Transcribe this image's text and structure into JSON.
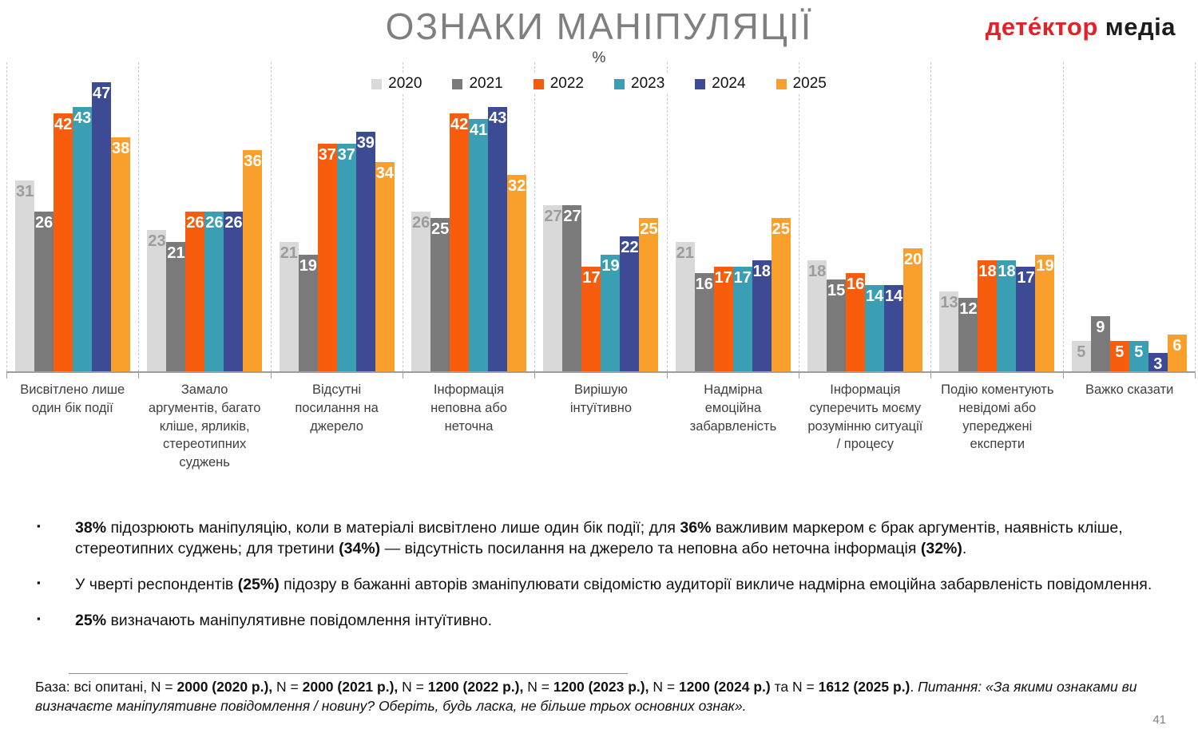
{
  "header": {
    "title": "ОЗНАКИ МАНІПУЛЯЦІЇ",
    "logo": {
      "text_red": "дете́ктор",
      "text_black": "медіа",
      "color_red": "#e32127",
      "color_black": "#1c1c1c"
    }
  },
  "chart_data": {
    "type": "bar",
    "unit": "%",
    "title": "ОЗНАКИ МАНІПУЛЯЦІЇ",
    "legend_position": "top",
    "grid": false,
    "ylim": [
      0,
      50
    ],
    "categories": [
      "Висвітлено лише один бік події",
      "Замало аргументів, багато кліше, ярликів, стереотипних суджень",
      "Відсутні посилання на джерело",
      "Інформація неповна або неточна",
      "Вирішую інтуїтивно",
      "Надмірна емоційна забарвленість",
      "Інформація суперечить моєму розумінню ситуації / процесу",
      "Подію коментують невідомі або упереджені експерти",
      "Важко сказати"
    ],
    "series": [
      {
        "name": "2020",
        "color": "#d9d9d9",
        "label_color": "#9c9c9c",
        "values": [
          31,
          23,
          21,
          26,
          27,
          21,
          18,
          13,
          5
        ]
      },
      {
        "name": "2021",
        "color": "#7a7a7a",
        "label_color": "#ffffff",
        "values": [
          26,
          21,
          19,
          25,
          27,
          16,
          15,
          12,
          9
        ]
      },
      {
        "name": "2022",
        "color": "#f85c0d",
        "label_color": "#ffffff",
        "values": [
          42,
          26,
          37,
          42,
          17,
          17,
          16,
          18,
          5
        ]
      },
      {
        "name": "2023",
        "color": "#3a9fb2",
        "label_color": "#ffffff",
        "values": [
          43,
          26,
          37,
          41,
          19,
          17,
          14,
          18,
          5
        ]
      },
      {
        "name": "2024",
        "color": "#3d4a94",
        "label_color": "#ffffff",
        "values": [
          47,
          26,
          39,
          43,
          22,
          18,
          14,
          17,
          3
        ]
      },
      {
        "name": "2025",
        "color": "#f9a02c",
        "label_color": "#ffffff",
        "values": [
          38,
          36,
          34,
          32,
          25,
          25,
          20,
          19,
          6
        ]
      }
    ]
  },
  "bullets": {
    "marker": "▪",
    "items": [
      {
        "runs": [
          {
            "t": "38%",
            "b": true
          },
          {
            "t": " підозрюють маніпуляцію, коли в матеріалі висвітлено лише один бік події; для "
          },
          {
            "t": "36%",
            "b": true
          },
          {
            "t": " важливим маркером є брак аргументів, наявність кліше, стереотипних суджень; для третини "
          },
          {
            "t": "(34%)",
            "b": true
          },
          {
            "t": " — відсутність посилання на джерело та неповна або неточна інформація "
          },
          {
            "t": "(32%)",
            "b": true
          },
          {
            "t": "."
          }
        ]
      },
      {
        "runs": [
          {
            "t": "У чверті респондентів "
          },
          {
            "t": "(25%)",
            "b": true
          },
          {
            "t": " підозру в бажанні авторів зманіпулювати свідомістю аудиторії викличе надмірна емоційна забарвленість повідомлення."
          }
        ]
      },
      {
        "runs": [
          {
            "t": "25%",
            "b": true
          },
          {
            "t": " визначають маніпулятивне повідомлення інтуїтивно."
          }
        ]
      }
    ]
  },
  "footer": {
    "base_runs": [
      {
        "t": "База: всі опитані, N = "
      },
      {
        "t": "2000 (2020 р.),",
        "b": true
      },
      {
        "t": " N = "
      },
      {
        "t": "2000 (2021 р.),",
        "b": true
      },
      {
        "t": " N = "
      },
      {
        "t": "1200 (2022 р.),",
        "b": true
      },
      {
        "t": " N = "
      },
      {
        "t": "1200 (2023 р.),",
        "b": true
      },
      {
        "t": " N = "
      },
      {
        "t": "1200 (2024 р.)",
        "b": true
      },
      {
        "t": " та N = "
      },
      {
        "t": "1612 (2025 р.)",
        "b": true
      },
      {
        "t": ". "
      },
      {
        "t": "Питання: «За якими ознаками ви визначаєте маніпулятивне повідомлення / новину? Оберіть, будь ласка, не більше трьох основних ознак».",
        "i": true
      }
    ],
    "page_number": "41"
  }
}
